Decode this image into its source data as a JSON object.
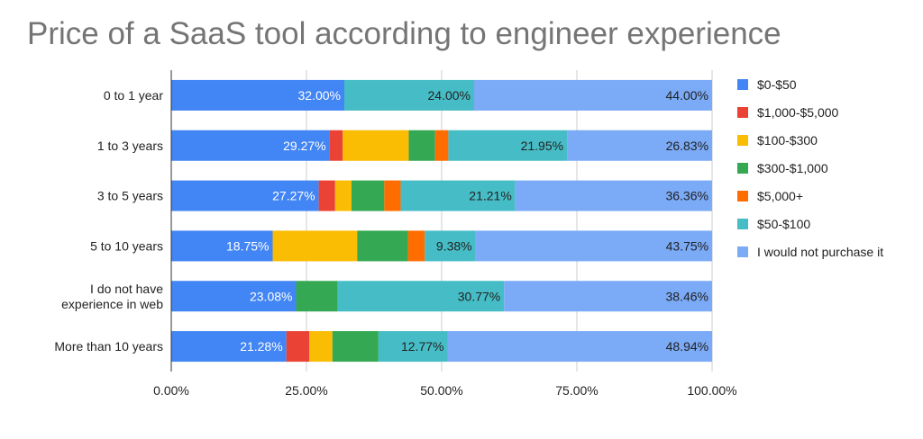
{
  "chart_data": {
    "type": "bar",
    "orientation": "horizontal",
    "stacked": "percent",
    "title": "Price of a SaaS tool according to engineer experience",
    "xlabel": "",
    "ylabel": "",
    "xlim": [
      0,
      100
    ],
    "x_ticks": [
      "0.00%",
      "25.00%",
      "50.00%",
      "75.00%",
      "100.00%"
    ],
    "categories": [
      "0 to 1 year",
      "1 to 3 years",
      "3 to 5 years",
      "5 to 10 years",
      "I do not have experience in web",
      "More than 10 years"
    ],
    "category_lines": [
      [
        "0 to 1 year"
      ],
      [
        "1 to 3 years"
      ],
      [
        "3 to 5 years"
      ],
      [
        "5 to 10 years"
      ],
      [
        "I do not have",
        "experience in web"
      ],
      [
        "More than 10 years"
      ]
    ],
    "legend_position": "right",
    "series": [
      {
        "name": "$0-$50",
        "color": "#4285f4",
        "label_color": "#ffffff",
        "values": [
          32.0,
          29.27,
          27.27,
          18.75,
          23.08,
          21.28
        ],
        "labels": [
          "32.00%",
          "29.27%",
          "27.27%",
          "18.75%",
          "23.08%",
          "21.28%"
        ]
      },
      {
        "name": "$1,000-$5,000",
        "color": "#ea4335",
        "label_color": "#222222",
        "values": [
          0,
          2.44,
          3.03,
          0,
          0,
          4.26
        ],
        "labels": [
          "",
          "",
          "",
          "",
          "",
          ""
        ]
      },
      {
        "name": "$100-$300",
        "color": "#fbbc04",
        "label_color": "#222222",
        "values": [
          0,
          12.2,
          3.03,
          15.63,
          0,
          4.26
        ],
        "labels": [
          "",
          "",
          "",
          "",
          "",
          ""
        ]
      },
      {
        "name": "$300-$1,000",
        "color": "#34a853",
        "label_color": "#222222",
        "values": [
          0,
          4.88,
          6.06,
          9.38,
          7.69,
          8.51
        ],
        "labels": [
          "",
          "",
          "",
          "",
          "",
          ""
        ]
      },
      {
        "name": "$5,000+",
        "color": "#ff6d01",
        "label_color": "#222222",
        "values": [
          0,
          2.44,
          3.03,
          3.13,
          0,
          0
        ],
        "labels": [
          "",
          "",
          "",
          "",
          "",
          ""
        ]
      },
      {
        "name": "$50-$100",
        "color": "#46bdc6",
        "label_color": "#222222",
        "values": [
          24.0,
          21.95,
          21.21,
          9.38,
          30.77,
          12.77
        ],
        "labels": [
          "24.00%",
          "21.95%",
          "21.21%",
          "9.38%",
          "30.77%",
          "12.77%"
        ]
      },
      {
        "name": "I would not purchase it",
        "color": "#7baaf7",
        "label_color": "#222222",
        "values": [
          44.0,
          26.83,
          36.36,
          43.75,
          38.46,
          48.94
        ],
        "labels": [
          "44.00%",
          "26.83%",
          "36.36%",
          "43.75%",
          "38.46%",
          "48.94%"
        ]
      }
    ]
  }
}
